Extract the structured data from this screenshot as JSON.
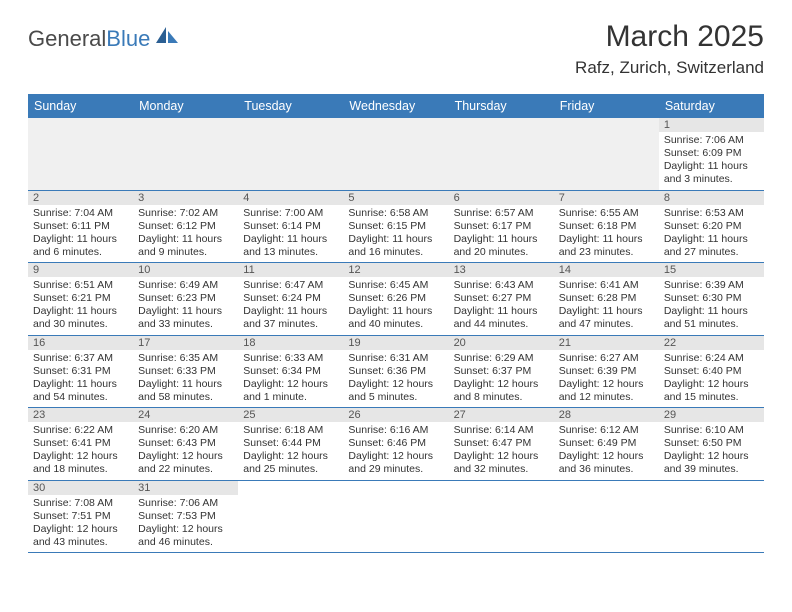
{
  "logo": {
    "text1": "General",
    "text2": "Blue"
  },
  "title": "March 2025",
  "location": "Rafz, Zurich, Switzerland",
  "colors": {
    "header_bg": "#3a7ab8",
    "daynum_bg": "#e6e6e6",
    "row_divider": "#3a7ab8"
  },
  "day_headers": [
    "Sunday",
    "Monday",
    "Tuesday",
    "Wednesday",
    "Thursday",
    "Friday",
    "Saturday"
  ],
  "weeks": [
    [
      null,
      null,
      null,
      null,
      null,
      null,
      {
        "n": "1",
        "sr": "Sunrise: 7:06 AM",
        "ss": "Sunset: 6:09 PM",
        "dl": "Daylight: 11 hours and 3 minutes."
      }
    ],
    [
      {
        "n": "2",
        "sr": "Sunrise: 7:04 AM",
        "ss": "Sunset: 6:11 PM",
        "dl": "Daylight: 11 hours and 6 minutes."
      },
      {
        "n": "3",
        "sr": "Sunrise: 7:02 AM",
        "ss": "Sunset: 6:12 PM",
        "dl": "Daylight: 11 hours and 9 minutes."
      },
      {
        "n": "4",
        "sr": "Sunrise: 7:00 AM",
        "ss": "Sunset: 6:14 PM",
        "dl": "Daylight: 11 hours and 13 minutes."
      },
      {
        "n": "5",
        "sr": "Sunrise: 6:58 AM",
        "ss": "Sunset: 6:15 PM",
        "dl": "Daylight: 11 hours and 16 minutes."
      },
      {
        "n": "6",
        "sr": "Sunrise: 6:57 AM",
        "ss": "Sunset: 6:17 PM",
        "dl": "Daylight: 11 hours and 20 minutes."
      },
      {
        "n": "7",
        "sr": "Sunrise: 6:55 AM",
        "ss": "Sunset: 6:18 PM",
        "dl": "Daylight: 11 hours and 23 minutes."
      },
      {
        "n": "8",
        "sr": "Sunrise: 6:53 AM",
        "ss": "Sunset: 6:20 PM",
        "dl": "Daylight: 11 hours and 27 minutes."
      }
    ],
    [
      {
        "n": "9",
        "sr": "Sunrise: 6:51 AM",
        "ss": "Sunset: 6:21 PM",
        "dl": "Daylight: 11 hours and 30 minutes."
      },
      {
        "n": "10",
        "sr": "Sunrise: 6:49 AM",
        "ss": "Sunset: 6:23 PM",
        "dl": "Daylight: 11 hours and 33 minutes."
      },
      {
        "n": "11",
        "sr": "Sunrise: 6:47 AM",
        "ss": "Sunset: 6:24 PM",
        "dl": "Daylight: 11 hours and 37 minutes."
      },
      {
        "n": "12",
        "sr": "Sunrise: 6:45 AM",
        "ss": "Sunset: 6:26 PM",
        "dl": "Daylight: 11 hours and 40 minutes."
      },
      {
        "n": "13",
        "sr": "Sunrise: 6:43 AM",
        "ss": "Sunset: 6:27 PM",
        "dl": "Daylight: 11 hours and 44 minutes."
      },
      {
        "n": "14",
        "sr": "Sunrise: 6:41 AM",
        "ss": "Sunset: 6:28 PM",
        "dl": "Daylight: 11 hours and 47 minutes."
      },
      {
        "n": "15",
        "sr": "Sunrise: 6:39 AM",
        "ss": "Sunset: 6:30 PM",
        "dl": "Daylight: 11 hours and 51 minutes."
      }
    ],
    [
      {
        "n": "16",
        "sr": "Sunrise: 6:37 AM",
        "ss": "Sunset: 6:31 PM",
        "dl": "Daylight: 11 hours and 54 minutes."
      },
      {
        "n": "17",
        "sr": "Sunrise: 6:35 AM",
        "ss": "Sunset: 6:33 PM",
        "dl": "Daylight: 11 hours and 58 minutes."
      },
      {
        "n": "18",
        "sr": "Sunrise: 6:33 AM",
        "ss": "Sunset: 6:34 PM",
        "dl": "Daylight: 12 hours and 1 minute."
      },
      {
        "n": "19",
        "sr": "Sunrise: 6:31 AM",
        "ss": "Sunset: 6:36 PM",
        "dl": "Daylight: 12 hours and 5 minutes."
      },
      {
        "n": "20",
        "sr": "Sunrise: 6:29 AM",
        "ss": "Sunset: 6:37 PM",
        "dl": "Daylight: 12 hours and 8 minutes."
      },
      {
        "n": "21",
        "sr": "Sunrise: 6:27 AM",
        "ss": "Sunset: 6:39 PM",
        "dl": "Daylight: 12 hours and 12 minutes."
      },
      {
        "n": "22",
        "sr": "Sunrise: 6:24 AM",
        "ss": "Sunset: 6:40 PM",
        "dl": "Daylight: 12 hours and 15 minutes."
      }
    ],
    [
      {
        "n": "23",
        "sr": "Sunrise: 6:22 AM",
        "ss": "Sunset: 6:41 PM",
        "dl": "Daylight: 12 hours and 18 minutes."
      },
      {
        "n": "24",
        "sr": "Sunrise: 6:20 AM",
        "ss": "Sunset: 6:43 PM",
        "dl": "Daylight: 12 hours and 22 minutes."
      },
      {
        "n": "25",
        "sr": "Sunrise: 6:18 AM",
        "ss": "Sunset: 6:44 PM",
        "dl": "Daylight: 12 hours and 25 minutes."
      },
      {
        "n": "26",
        "sr": "Sunrise: 6:16 AM",
        "ss": "Sunset: 6:46 PM",
        "dl": "Daylight: 12 hours and 29 minutes."
      },
      {
        "n": "27",
        "sr": "Sunrise: 6:14 AM",
        "ss": "Sunset: 6:47 PM",
        "dl": "Daylight: 12 hours and 32 minutes."
      },
      {
        "n": "28",
        "sr": "Sunrise: 6:12 AM",
        "ss": "Sunset: 6:49 PM",
        "dl": "Daylight: 12 hours and 36 minutes."
      },
      {
        "n": "29",
        "sr": "Sunrise: 6:10 AM",
        "ss": "Sunset: 6:50 PM",
        "dl": "Daylight: 12 hours and 39 minutes."
      }
    ],
    [
      {
        "n": "30",
        "sr": "Sunrise: 7:08 AM",
        "ss": "Sunset: 7:51 PM",
        "dl": "Daylight: 12 hours and 43 minutes."
      },
      {
        "n": "31",
        "sr": "Sunrise: 7:06 AM",
        "ss": "Sunset: 7:53 PM",
        "dl": "Daylight: 12 hours and 46 minutes."
      },
      null,
      null,
      null,
      null,
      null
    ]
  ]
}
